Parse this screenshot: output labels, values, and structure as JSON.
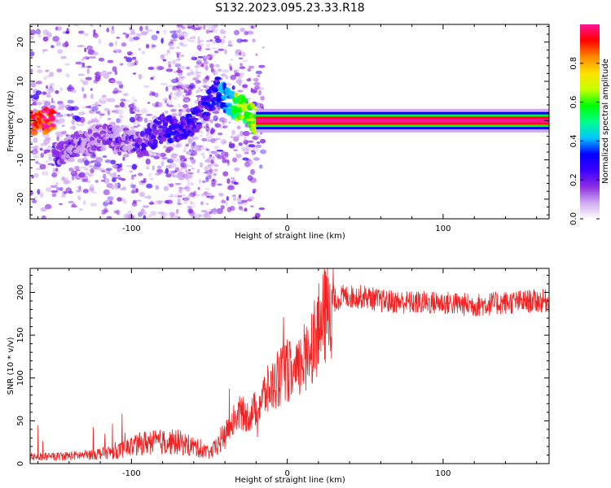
{
  "title": "S132.2023.095.23.33.R18",
  "colors": {
    "snr_line": "#ee2222",
    "colormap": [
      "#ffffff",
      "#cfaaf0",
      "#8a2be2",
      "#3b00ff",
      "#0000ff",
      "#00c8ff",
      "#00ff88",
      "#00ff00",
      "#c8ff00",
      "#ffe000",
      "#ff8800",
      "#ff0000",
      "#ff1493"
    ]
  },
  "chart_data": [
    {
      "type": "heatmap",
      "xlabel": "Height of straight line (km)",
      "ylabel": "Frequency (Hz)",
      "xlim": [
        -165,
        168
      ],
      "ylim": [
        -25,
        24.5
      ],
      "xticks": [
        -100,
        0,
        100
      ],
      "xtick_labels": [
        "-100",
        "0",
        "100"
      ],
      "yticks": [
        -20,
        -10,
        0,
        10,
        20
      ],
      "ytick_labels": [
        "-20",
        "-10",
        "0",
        "10",
        "20"
      ],
      "colorbar": {
        "label": "Normalized spectral amplitude",
        "range": [
          0.0,
          1.0
        ],
        "ticks": [
          0.0,
          0.2,
          0.4,
          0.6,
          0.8
        ],
        "tick_labels": [
          "0.0",
          "0.2",
          "0.4",
          "0.6",
          "0.8"
        ]
      },
      "ridge": {
        "description_points": [
          {
            "x": -150,
            "y": -9,
            "amp": 0.25
          },
          {
            "x": -120,
            "y": -4,
            "amp": 0.2
          },
          {
            "x": -95,
            "y": -6,
            "amp": 0.25
          },
          {
            "x": -80,
            "y": -2,
            "amp": 0.3
          },
          {
            "x": -65,
            "y": -2,
            "amp": 0.35
          },
          {
            "x": -55,
            "y": 2,
            "amp": 0.3
          },
          {
            "x": -45,
            "y": 8,
            "amp": 0.4
          },
          {
            "x": -38,
            "y": 5,
            "amp": 0.5
          },
          {
            "x": -30,
            "y": 3,
            "amp": 0.7
          },
          {
            "x": -20,
            "y": 0,
            "amp": 0.75
          },
          {
            "x": 0,
            "y": 0,
            "amp": 0.85
          },
          {
            "x": 50,
            "y": 0,
            "amp": 0.95
          },
          {
            "x": 100,
            "y": 0,
            "amp": 1.0
          },
          {
            "x": 168,
            "y": 0,
            "amp": 1.0
          }
        ]
      }
    },
    {
      "type": "line",
      "xlabel": "Height of straight line (km)",
      "ylabel": "SNR (10 * v/v)",
      "xlim": [
        -165,
        168
      ],
      "ylim": [
        0,
        228
      ],
      "xticks": [
        -100,
        0,
        100
      ],
      "xtick_labels": [
        "-100",
        "0",
        "100"
      ],
      "yticks": [
        0,
        50,
        100,
        150,
        200
      ],
      "ytick_labels": [
        "0",
        "50",
        "100",
        "150",
        "200"
      ],
      "series": [
        {
          "x": [
            -165,
            -150,
            -130,
            -110,
            -100,
            -90,
            -80,
            -70,
            -60,
            -50,
            -45,
            -40,
            -35,
            -30,
            -25,
            -20,
            -15,
            -10,
            -5,
            0,
            5,
            10,
            15,
            20,
            25,
            30,
            35,
            40,
            50,
            60,
            80,
            100,
            120,
            140,
            160,
            168
          ],
          "values": [
            8,
            8,
            10,
            14,
            20,
            25,
            25,
            25,
            20,
            12,
            20,
            35,
            50,
            60,
            55,
            65,
            80,
            90,
            100,
            110,
            100,
            120,
            140,
            155,
            175,
            190,
            195,
            195,
            195,
            190,
            188,
            188,
            185,
            188,
            190,
            190
          ]
        }
      ]
    }
  ]
}
